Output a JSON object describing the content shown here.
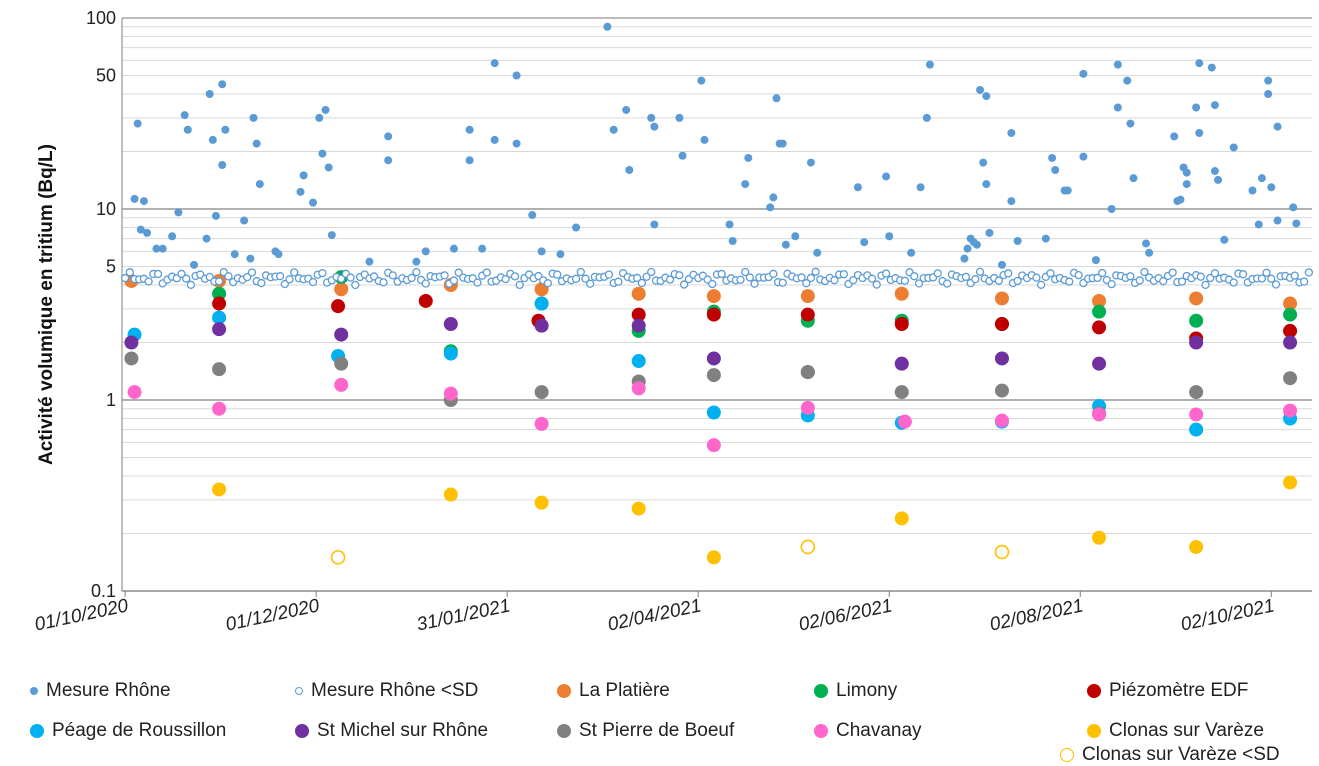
{
  "chart_data": {
    "type": "scatter",
    "title": "",
    "xlabel": "",
    "ylabel": "Activité volumique en tritium (Bq/L)",
    "yscale": "log",
    "ylim": [
      0.1,
      100
    ],
    "xlim": [
      "2020-09-30",
      "2021-10-15"
    ],
    "yticks": [
      {
        "value": 100,
        "label": "100"
      },
      {
        "value": 50,
        "label": "50"
      },
      {
        "value": 10,
        "label": "10"
      },
      {
        "value": 5,
        "label": "5"
      },
      {
        "value": 1,
        "label": "1"
      },
      {
        "value": 0.1,
        "label": "0.1"
      }
    ],
    "xticks": [
      "01/10/2020",
      "01/12/2020",
      "31/01/2021",
      "02/04/2021",
      "02/06/2021",
      "02/08/2021",
      "02/10/2021"
    ],
    "xtick_dates": [
      "2020-10-01",
      "2020-12-01",
      "2021-01-31",
      "2021-04-02",
      "2021-06-02",
      "2021-08-02",
      "2021-10-02"
    ],
    "grid": true,
    "legend_position": "bottom",
    "series": [
      {
        "name": "Mesure Rhône",
        "color": "#5B9BD5",
        "marker": "small-filled",
        "points": [
          [
            "2020-10-04",
            11.3
          ],
          [
            "2020-10-05",
            28
          ],
          [
            "2020-10-06",
            7.8
          ],
          [
            "2020-10-07",
            11
          ],
          [
            "2020-10-08",
            7.5
          ],
          [
            "2020-10-11",
            6.2
          ],
          [
            "2020-10-13",
            6.2
          ],
          [
            "2020-10-16",
            7.2
          ],
          [
            "2020-10-18",
            9.6
          ],
          [
            "2020-10-20",
            31
          ],
          [
            "2020-10-21",
            26
          ],
          [
            "2020-10-23",
            5.1
          ],
          [
            "2020-10-27",
            7
          ],
          [
            "2020-10-28",
            40
          ],
          [
            "2020-10-29",
            23
          ],
          [
            "2020-10-30",
            9.2
          ],
          [
            "2020-11-01",
            45
          ],
          [
            "2020-11-01",
            17
          ],
          [
            "2020-11-02",
            26
          ],
          [
            "2020-11-05",
            5.8
          ],
          [
            "2020-11-08",
            8.7
          ],
          [
            "2020-11-10",
            5.5
          ],
          [
            "2020-11-11",
            30
          ],
          [
            "2020-11-12",
            22
          ],
          [
            "2020-11-13",
            13.5
          ],
          [
            "2020-11-18",
            6
          ],
          [
            "2020-11-19",
            5.8
          ],
          [
            "2020-11-26",
            12.3
          ],
          [
            "2020-11-27",
            15
          ],
          [
            "2020-11-30",
            10.8
          ],
          [
            "2020-12-02",
            30
          ],
          [
            "2020-12-03",
            19.5
          ],
          [
            "2020-12-04",
            33
          ],
          [
            "2020-12-05",
            16.5
          ],
          [
            "2020-12-06",
            7.3
          ],
          [
            "2020-12-18",
            5.3
          ],
          [
            "2020-12-24",
            24
          ],
          [
            "2020-12-24",
            18
          ],
          [
            "2021-01-02",
            5.3
          ],
          [
            "2021-01-05",
            6
          ],
          [
            "2021-01-14",
            6.2
          ],
          [
            "2021-01-19",
            26
          ],
          [
            "2021-01-19",
            18
          ],
          [
            "2021-01-23",
            6.2
          ],
          [
            "2021-01-27",
            58
          ],
          [
            "2021-01-27",
            23
          ],
          [
            "2021-02-03",
            50
          ],
          [
            "2021-02-03",
            22
          ],
          [
            "2021-02-08",
            9.3
          ],
          [
            "2021-02-11",
            6
          ],
          [
            "2021-02-17",
            5.8
          ],
          [
            "2021-02-22",
            8
          ],
          [
            "2021-03-04",
            90
          ],
          [
            "2021-03-06",
            26
          ],
          [
            "2021-03-10",
            33
          ],
          [
            "2021-03-11",
            16
          ],
          [
            "2021-03-18",
            30
          ],
          [
            "2021-03-19",
            27
          ],
          [
            "2021-03-19",
            8.3
          ],
          [
            "2021-03-27",
            30
          ],
          [
            "2021-03-28",
            19
          ],
          [
            "2021-04-03",
            47
          ],
          [
            "2021-04-04",
            23
          ],
          [
            "2021-04-12",
            8.3
          ],
          [
            "2021-04-13",
            6.8
          ],
          [
            "2021-04-17",
            13.5
          ],
          [
            "2021-04-18",
            18.5
          ],
          [
            "2021-04-25",
            10.2
          ],
          [
            "2021-04-26",
            11.5
          ],
          [
            "2021-04-27",
            38
          ],
          [
            "2021-04-28",
            22
          ],
          [
            "2021-04-29",
            22
          ],
          [
            "2021-04-30",
            6.5
          ],
          [
            "2021-05-03",
            7.2
          ],
          [
            "2021-05-08",
            17.5
          ],
          [
            "2021-05-10",
            5.9
          ],
          [
            "2021-05-23",
            13
          ],
          [
            "2021-05-25",
            6.7
          ],
          [
            "2021-06-01",
            14.8
          ],
          [
            "2021-06-02",
            7.2
          ],
          [
            "2021-06-09",
            5.9
          ],
          [
            "2021-06-12",
            13
          ],
          [
            "2021-06-14",
            30
          ],
          [
            "2021-06-15",
            57
          ],
          [
            "2021-06-26",
            5.5
          ],
          [
            "2021-06-27",
            6.2
          ],
          [
            "2021-06-28",
            7
          ],
          [
            "2021-06-29",
            6.7
          ],
          [
            "2021-06-30",
            6.5
          ],
          [
            "2021-07-01",
            42
          ],
          [
            "2021-07-02",
            17.5
          ],
          [
            "2021-07-03",
            39
          ],
          [
            "2021-07-03",
            13.5
          ],
          [
            "2021-07-04",
            7.5
          ],
          [
            "2021-07-08",
            5.1
          ],
          [
            "2021-07-11",
            25
          ],
          [
            "2021-07-11",
            11
          ],
          [
            "2021-07-13",
            6.8
          ],
          [
            "2021-07-22",
            7
          ],
          [
            "2021-07-24",
            18.5
          ],
          [
            "2021-07-25",
            16
          ],
          [
            "2021-07-28",
            12.5
          ],
          [
            "2021-07-29",
            12.5
          ],
          [
            "2021-08-03",
            18.8
          ],
          [
            "2021-08-03",
            51
          ],
          [
            "2021-08-07",
            5.4
          ],
          [
            "2021-08-12",
            10
          ],
          [
            "2021-08-14",
            34
          ],
          [
            "2021-08-14",
            57
          ],
          [
            "2021-08-17",
            47
          ],
          [
            "2021-08-18",
            28
          ],
          [
            "2021-08-19",
            14.5
          ],
          [
            "2021-08-23",
            6.6
          ],
          [
            "2021-08-24",
            5.9
          ],
          [
            "2021-09-01",
            24
          ],
          [
            "2021-09-02",
            11
          ],
          [
            "2021-09-03",
            11.2
          ],
          [
            "2021-09-04",
            16.5
          ],
          [
            "2021-09-05",
            13.5
          ],
          [
            "2021-09-05",
            15.5
          ],
          [
            "2021-09-08",
            34
          ],
          [
            "2021-09-09",
            25
          ],
          [
            "2021-09-09",
            58
          ],
          [
            "2021-09-13",
            55
          ],
          [
            "2021-09-14",
            35
          ],
          [
            "2021-09-14",
            15.8
          ],
          [
            "2021-09-15",
            14.2
          ],
          [
            "2021-09-17",
            6.9
          ],
          [
            "2021-09-20",
            21
          ],
          [
            "2021-09-26",
            12.5
          ],
          [
            "2021-09-28",
            8.3
          ],
          [
            "2021-09-29",
            14.5
          ],
          [
            "2021-10-01",
            40
          ],
          [
            "2021-10-01",
            47
          ],
          [
            "2021-10-02",
            13
          ],
          [
            "2021-10-04",
            27
          ],
          [
            "2021-10-04",
            8.7
          ],
          [
            "2021-10-09",
            10.2
          ],
          [
            "2021-10-10",
            8.4
          ]
        ]
      },
      {
        "name": "Mesure Rhône <SD",
        "color": "#5B9BD5",
        "marker": "small-open",
        "points": []
      },
      {
        "name": "La Platière",
        "color": "#ED7D31",
        "marker": "large-filled",
        "points": [
          [
            "2020-10-03",
            4.2
          ],
          [
            "2020-10-31",
            4.2
          ],
          [
            "2020-12-09",
            3.8
          ],
          [
            "2021-01-13",
            4
          ],
          [
            "2021-02-11",
            3.8
          ],
          [
            "2021-03-14",
            3.6
          ],
          [
            "2021-04-07",
            3.5
          ],
          [
            "2021-05-07",
            3.5
          ],
          [
            "2021-06-06",
            3.6
          ],
          [
            "2021-07-08",
            3.4
          ],
          [
            "2021-08-08",
            3.3
          ],
          [
            "2021-09-08",
            3.4
          ],
          [
            "2021-10-08",
            3.2
          ]
        ]
      },
      {
        "name": "Limony",
        "color": "#00B050",
        "marker": "large-filled",
        "points": [
          [
            "2020-10-31",
            3.6
          ],
          [
            "2020-12-09",
            4.4
          ],
          [
            "2021-01-13",
            1.8
          ],
          [
            "2021-02-11",
            3.2
          ],
          [
            "2021-03-14",
            2.3
          ],
          [
            "2021-04-07",
            2.9
          ],
          [
            "2021-05-07",
            2.6
          ],
          [
            "2021-06-06",
            2.6
          ],
          [
            "2021-07-08",
            2.5
          ],
          [
            "2021-08-08",
            2.9
          ],
          [
            "2021-09-08",
            2.6
          ],
          [
            "2021-10-08",
            2.8
          ]
        ]
      },
      {
        "name": "Piézomètre EDF",
        "color": "#C00000",
        "marker": "large-filled",
        "points": [
          [
            "2020-10-31",
            3.2
          ],
          [
            "2020-12-08",
            3.1
          ],
          [
            "2021-01-05",
            3.3
          ],
          [
            "2021-02-10",
            2.6
          ],
          [
            "2021-03-14",
            2.8
          ],
          [
            "2021-04-07",
            2.8
          ],
          [
            "2021-05-07",
            2.8
          ],
          [
            "2021-06-06",
            2.5
          ],
          [
            "2021-07-08",
            2.5
          ],
          [
            "2021-08-08",
            2.4
          ],
          [
            "2021-09-08",
            2.1
          ],
          [
            "2021-10-08",
            2.3
          ]
        ]
      },
      {
        "name": "Péage de Roussillon",
        "color": "#00B0F0",
        "marker": "large-filled",
        "points": [
          [
            "2020-10-04",
            2.2
          ],
          [
            "2020-10-31",
            2.7
          ],
          [
            "2020-12-08",
            1.7
          ],
          [
            "2021-01-13",
            1.75
          ],
          [
            "2021-02-11",
            3.2
          ],
          [
            "2021-03-14",
            1.6
          ],
          [
            "2021-04-07",
            0.86
          ],
          [
            "2021-05-07",
            0.83
          ],
          [
            "2021-06-06",
            0.76
          ],
          [
            "2021-07-08",
            0.77
          ],
          [
            "2021-08-08",
            0.93
          ],
          [
            "2021-09-08",
            0.7
          ],
          [
            "2021-10-08",
            0.8
          ]
        ]
      },
      {
        "name": "St Michel sur Rhône",
        "color": "#7030A0",
        "marker": "large-filled",
        "points": [
          [
            "2020-10-03",
            2
          ],
          [
            "2020-10-31",
            2.35
          ],
          [
            "2020-12-09",
            2.2
          ],
          [
            "2021-01-13",
            2.5
          ],
          [
            "2021-02-11",
            2.45
          ],
          [
            "2021-03-14",
            2.45
          ],
          [
            "2021-04-07",
            1.65
          ],
          [
            "2021-05-07",
            1.4
          ],
          [
            "2021-06-06",
            1.55
          ],
          [
            "2021-07-08",
            1.65
          ],
          [
            "2021-08-08",
            1.55
          ],
          [
            "2021-09-08",
            2
          ],
          [
            "2021-10-08",
            2
          ]
        ]
      },
      {
        "name": "St Pierre de Boeuf",
        "color": "#808080",
        "marker": "large-filled",
        "points": [
          [
            "2020-10-03",
            1.65
          ],
          [
            "2020-10-31",
            1.45
          ],
          [
            "2020-12-09",
            1.55
          ],
          [
            "2021-01-13",
            1
          ],
          [
            "2021-02-11",
            1.1
          ],
          [
            "2021-03-14",
            1.25
          ],
          [
            "2021-04-07",
            1.35
          ],
          [
            "2021-05-07",
            1.4
          ],
          [
            "2021-06-06",
            1.1
          ],
          [
            "2021-07-08",
            1.12
          ],
          [
            "2021-08-08",
            0.85
          ],
          [
            "2021-09-08",
            1.1
          ],
          [
            "2021-10-08",
            1.3
          ]
        ]
      },
      {
        "name": "Chavanay",
        "color": "#FF66CC",
        "marker": "large-filled",
        "points": [
          [
            "2020-10-04",
            1.1
          ],
          [
            "2020-10-31",
            0.9
          ],
          [
            "2020-12-09",
            1.2
          ],
          [
            "2021-01-13",
            1.08
          ],
          [
            "2021-02-11",
            0.75
          ],
          [
            "2021-03-14",
            1.15
          ],
          [
            "2021-04-07",
            0.58
          ],
          [
            "2021-05-07",
            0.91
          ],
          [
            "2021-06-07",
            0.77
          ],
          [
            "2021-07-08",
            0.78
          ],
          [
            "2021-08-08",
            0.84
          ],
          [
            "2021-09-08",
            0.84
          ],
          [
            "2021-10-08",
            0.88
          ]
        ]
      },
      {
        "name": "Clonas sur Varèze",
        "color": "#FFC000",
        "marker": "large-filled",
        "points": [
          [
            "2020-10-31",
            0.34
          ],
          [
            "2021-01-13",
            0.32
          ],
          [
            "2021-02-11",
            0.29
          ],
          [
            "2021-03-14",
            0.27
          ],
          [
            "2021-04-07",
            0.15
          ],
          [
            "2021-06-06",
            0.24
          ],
          [
            "2021-08-08",
            0.19
          ],
          [
            "2021-09-08",
            0.17
          ],
          [
            "2021-10-08",
            0.37
          ]
        ]
      },
      {
        "name": "Clonas sur Varèze <SD",
        "color": "#FFC000",
        "marker": "large-open",
        "points": [
          [
            "2020-12-08",
            0.15
          ],
          [
            "2021-05-07",
            0.17
          ],
          [
            "2021-07-08",
            0.16
          ]
        ]
      }
    ],
    "legend": [
      {
        "label": "Mesure Rhône",
        "color": "#5B9BD5",
        "marker": "small-filled"
      },
      {
        "label": "Mesure Rhône  <SD",
        "color": "#5B9BD5",
        "marker": "small-open"
      },
      {
        "label": "La Platière",
        "color": "#ED7D31",
        "marker": "large-filled"
      },
      {
        "label": "Limony",
        "color": "#00B050",
        "marker": "large-filled"
      },
      {
        "label": "Piézomètre EDF",
        "color": "#C00000",
        "marker": "large-filled"
      },
      {
        "label": "Péage de Roussillon",
        "color": "#00B0F0",
        "marker": "large-filled"
      },
      {
        "label": "St Michel sur Rhône",
        "color": "#7030A0",
        "marker": "large-filled"
      },
      {
        "label": "St Pierre de Boeuf",
        "color": "#808080",
        "marker": "large-filled"
      },
      {
        "label": "Chavanay",
        "color": "#FF66CC",
        "marker": "large-filled"
      },
      {
        "label": "Clonas sur Varèze",
        "color": "#FFC000",
        "marker": "large-filled"
      },
      {
        "label": "Clonas sur Varèze  <SD",
        "color": "#FFC000",
        "marker": "large-open"
      }
    ]
  }
}
